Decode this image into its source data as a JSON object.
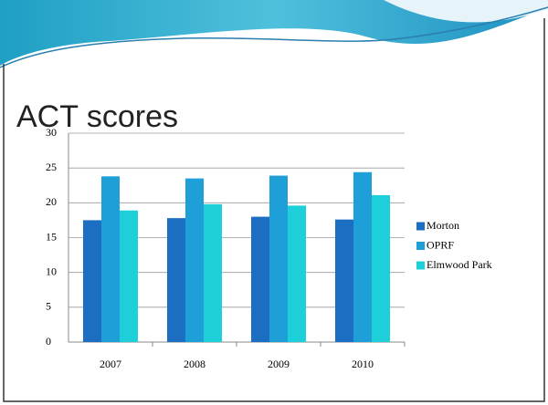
{
  "chart_data": {
    "type": "bar",
    "title": "ACT scores",
    "categories": [
      "2007",
      "2008",
      "2009",
      "2010"
    ],
    "series": [
      {
        "name": "Morton",
        "color": "#1b6ec2",
        "values": [
          17.5,
          17.8,
          18.0,
          17.6
        ]
      },
      {
        "name": "OPRF",
        "color": "#1e9fd8",
        "values": [
          23.8,
          23.5,
          23.9,
          24.4
        ]
      },
      {
        "name": "Elmwood Park",
        "color": "#1ccfd9",
        "values": [
          18.9,
          19.8,
          19.6,
          21.1
        ]
      }
    ],
    "ylim": [
      0,
      30
    ],
    "yticks": [
      0,
      5,
      10,
      15,
      20,
      25,
      30
    ],
    "grid": true,
    "legend": "right"
  }
}
